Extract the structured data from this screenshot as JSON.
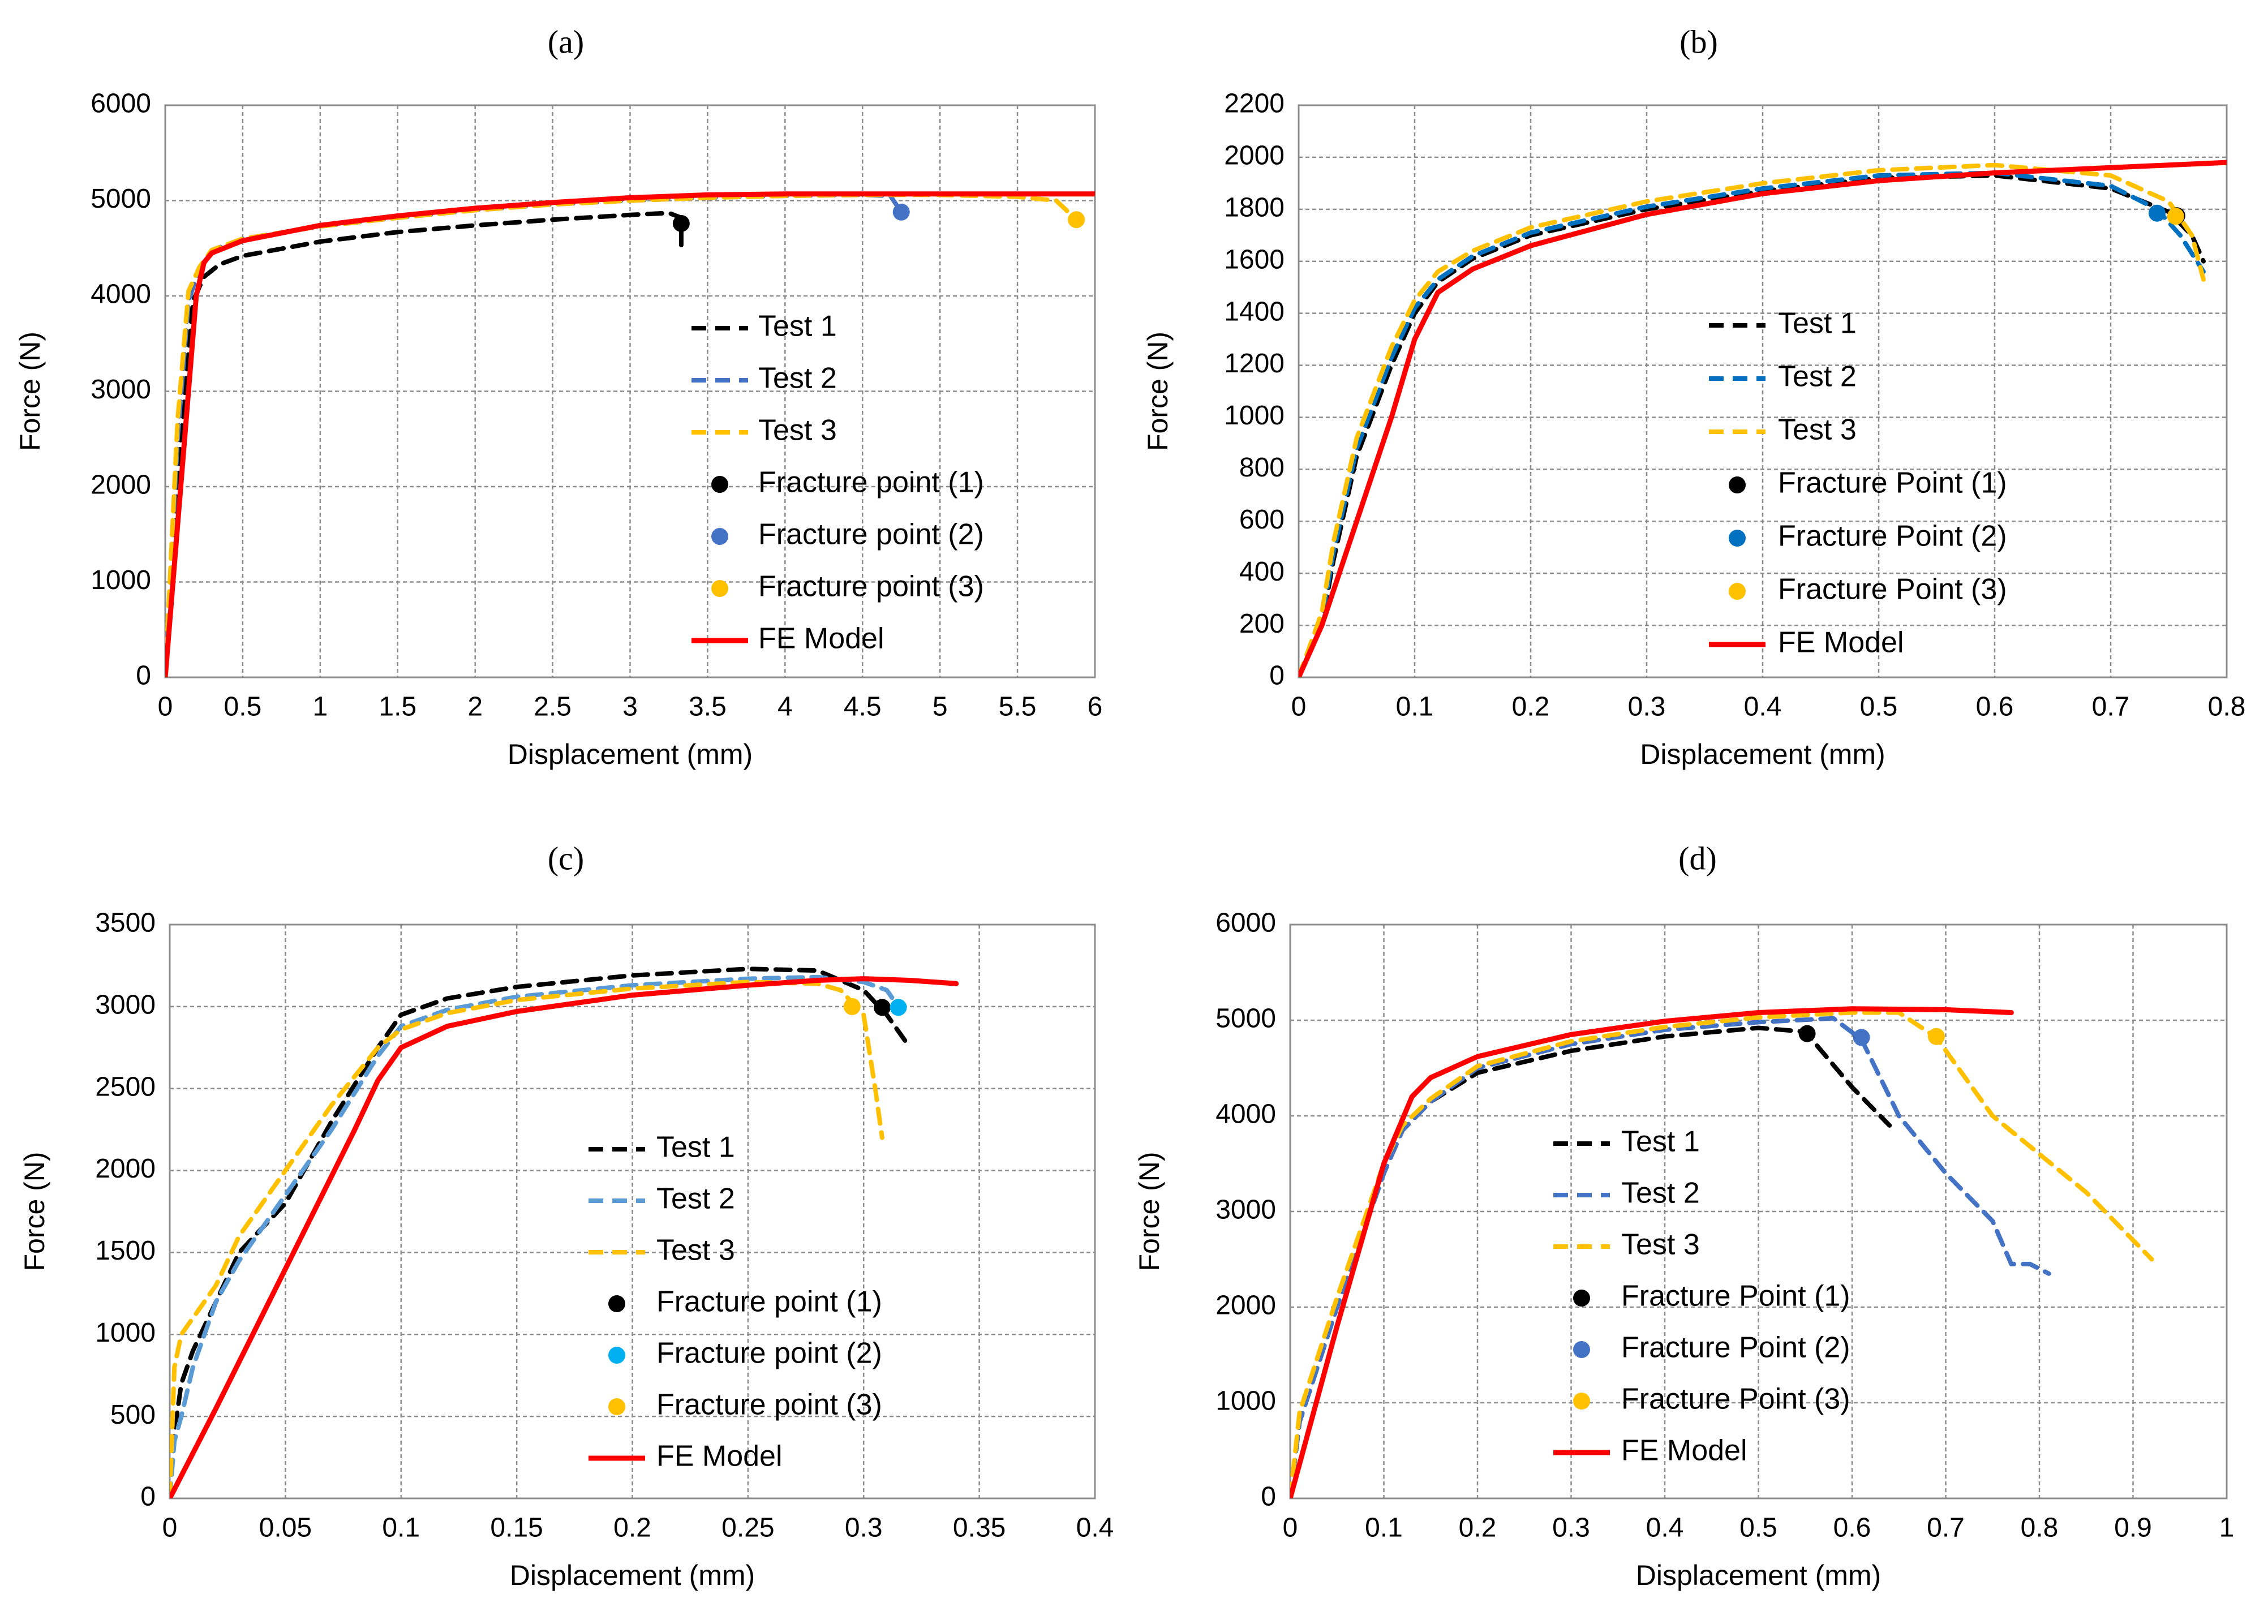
{
  "chart_data": [
    {
      "type": "line",
      "panel": "(a)",
      "xlabel": "Displacement (mm)",
      "ylabel": "Force (N)",
      "xlim": [
        0,
        6
      ],
      "ylim": [
        0,
        6000
      ],
      "xticks": [
        0,
        0.5,
        1,
        1.5,
        2,
        2.5,
        3,
        3.5,
        4,
        4.5,
        5,
        5.5,
        6
      ],
      "xtick_labels": [
        "0",
        "0.5",
        "1",
        "1.5",
        "2",
        "2.5",
        "3",
        "3.5",
        "4",
        "4.5",
        "5",
        "5.5",
        "6"
      ],
      "yticks": [
        0,
        1000,
        2000,
        3000,
        4000,
        5000,
        6000
      ],
      "ytick_labels": [
        "0",
        "1000",
        "2000",
        "3000",
        "4000",
        "5000",
        "6000"
      ],
      "grid": true,
      "legend_position": "center-right",
      "series": [
        {
          "name": "Test 1",
          "style": "dashed",
          "color": "#000000",
          "x": [
            0,
            0.1,
            0.18,
            0.25,
            0.35,
            0.5,
            1,
            1.5,
            2,
            2.5,
            3,
            3.25,
            3.33,
            3.33
          ],
          "y": [
            0,
            2500,
            3950,
            4200,
            4330,
            4420,
            4570,
            4670,
            4740,
            4800,
            4850,
            4870,
            4820,
            4450
          ]
        },
        {
          "name": "Test 2",
          "style": "dashed",
          "color": "#4472C4",
          "x": [
            0,
            0.08,
            0.15,
            0.22,
            0.3,
            0.5,
            1,
            1.5,
            2,
            2.5,
            3,
            3.5,
            4,
            4.5,
            4.68,
            4.75
          ],
          "y": [
            0,
            2500,
            3950,
            4280,
            4480,
            4600,
            4730,
            4820,
            4900,
            4960,
            5000,
            5030,
            5050,
            5060,
            5050,
            4880
          ]
        },
        {
          "name": "Test 3",
          "style": "dashed",
          "color": "#FFC000",
          "x": [
            0,
            0.08,
            0.15,
            0.22,
            0.3,
            0.5,
            1,
            1.5,
            2,
            2.5,
            3,
            3.5,
            4,
            4.5,
            5,
            5.5,
            5.75,
            5.88
          ],
          "y": [
            0,
            2700,
            4050,
            4300,
            4480,
            4600,
            4730,
            4820,
            4900,
            4960,
            5000,
            5030,
            5050,
            5060,
            5060,
            5040,
            5000,
            4800
          ]
        },
        {
          "name": "Fracture point (1)",
          "type": "marker",
          "color": "#000000",
          "x": [
            3.33
          ],
          "y": [
            4760
          ]
        },
        {
          "name": "Fracture point (2)",
          "type": "marker",
          "color": "#4472C4",
          "x": [
            4.75
          ],
          "y": [
            4880
          ]
        },
        {
          "name": "Fracture point (3)",
          "type": "marker",
          "color": "#FFC000",
          "x": [
            5.88
          ],
          "y": [
            4800
          ]
        },
        {
          "name": "FE Model",
          "style": "solid",
          "color": "#FF0000",
          "x": [
            0,
            0.1,
            0.2,
            0.25,
            0.3,
            0.5,
            1,
            1.5,
            2,
            2.5,
            3,
            3.5,
            4,
            4.5,
            5,
            5.5,
            6
          ],
          "y": [
            0,
            2000,
            4000,
            4350,
            4450,
            4580,
            4740,
            4840,
            4920,
            4980,
            5030,
            5060,
            5070,
            5070,
            5070,
            5070,
            5070
          ]
        }
      ]
    },
    {
      "type": "line",
      "panel": "(b)",
      "xlabel": "Displacement (mm)",
      "ylabel": "Force (N)",
      "xlim": [
        0,
        0.8
      ],
      "ylim": [
        0,
        2200
      ],
      "xticks": [
        0,
        0.1,
        0.2,
        0.3,
        0.4,
        0.5,
        0.6,
        0.7,
        0.8
      ],
      "xtick_labels": [
        "0",
        "0.1",
        "0.2",
        "0.3",
        "0.4",
        "0.5",
        "0.6",
        "0.7",
        "0.8"
      ],
      "yticks": [
        0,
        200,
        400,
        600,
        800,
        1000,
        1200,
        1400,
        1600,
        1800,
        2000,
        2200
      ],
      "ytick_labels": [
        "0",
        "200",
        "400",
        "600",
        "800",
        "1000",
        "1200",
        "1400",
        "1600",
        "1800",
        "2000",
        "2200"
      ],
      "grid": true,
      "legend_position": "center",
      "series": [
        {
          "name": "Test 1",
          "style": "dashed",
          "color": "#000000",
          "x": [
            0,
            0.02,
            0.03,
            0.05,
            0.08,
            0.1,
            0.12,
            0.15,
            0.2,
            0.3,
            0.4,
            0.5,
            0.6,
            0.7,
            0.75,
            0.77,
            0.78
          ],
          "y": [
            0,
            200,
            450,
            850,
            1200,
            1400,
            1520,
            1610,
            1700,
            1800,
            1870,
            1920,
            1930,
            1880,
            1790,
            1700,
            1600
          ]
        },
        {
          "name": "Test 2",
          "style": "dashed",
          "color": "#0070C0",
          "x": [
            0,
            0.02,
            0.03,
            0.05,
            0.08,
            0.1,
            0.12,
            0.15,
            0.2,
            0.3,
            0.4,
            0.5,
            0.6,
            0.7,
            0.74,
            0.76,
            0.78
          ],
          "y": [
            0,
            220,
            480,
            880,
            1230,
            1420,
            1530,
            1620,
            1710,
            1810,
            1880,
            1930,
            1940,
            1890,
            1800,
            1700,
            1560
          ]
        },
        {
          "name": "Test 3",
          "style": "dashed",
          "color": "#FFC000",
          "x": [
            0,
            0.02,
            0.03,
            0.05,
            0.08,
            0.1,
            0.12,
            0.15,
            0.2,
            0.3,
            0.4,
            0.5,
            0.6,
            0.7,
            0.75,
            0.77,
            0.78
          ],
          "y": [
            0,
            250,
            520,
            920,
            1270,
            1450,
            1560,
            1640,
            1730,
            1830,
            1900,
            1950,
            1970,
            1930,
            1830,
            1700,
            1530
          ]
        },
        {
          "name": "Fracture Point (1)",
          "type": "marker",
          "color": "#000000",
          "x": [
            0.757
          ],
          "y": [
            1775
          ]
        },
        {
          "name": "Fracture Point (2)",
          "type": "marker",
          "color": "#0070C0",
          "x": [
            0.74
          ],
          "y": [
            1785
          ]
        },
        {
          "name": "Fracture Point (3)",
          "type": "marker",
          "color": "#FFC000",
          "x": [
            0.756
          ],
          "y": [
            1773
          ]
        },
        {
          "name": "FE Model",
          "style": "solid",
          "color": "#FF0000",
          "x": [
            0,
            0.02,
            0.05,
            0.08,
            0.1,
            0.12,
            0.15,
            0.2,
            0.3,
            0.4,
            0.5,
            0.6,
            0.7,
            0.8
          ],
          "y": [
            0,
            200,
            600,
            1000,
            1300,
            1480,
            1570,
            1660,
            1780,
            1860,
            1910,
            1940,
            1960,
            1980
          ]
        }
      ]
    },
    {
      "type": "line",
      "panel": "(c)",
      "xlabel": "Displacement (mm)",
      "ylabel": "Force (N)",
      "xlim": [
        0,
        0.4
      ],
      "ylim": [
        0,
        3500
      ],
      "xticks": [
        0,
        0.05,
        0.1,
        0.15,
        0.2,
        0.25,
        0.3,
        0.35,
        0.4
      ],
      "xtick_labels": [
        "0",
        "0.05",
        "0.1",
        "0.15",
        "0.2",
        "0.25",
        "0.3",
        "0.35",
        "0.4"
      ],
      "yticks": [
        0,
        500,
        1000,
        1500,
        2000,
        2500,
        3000,
        3500
      ],
      "ytick_labels": [
        "0",
        "500",
        "1000",
        "1500",
        "2000",
        "2500",
        "3000",
        "3500"
      ],
      "grid": true,
      "legend_position": "center",
      "series": [
        {
          "name": "Test 1",
          "style": "dashed",
          "color": "#000000",
          "x": [
            0,
            0.002,
            0.005,
            0.01,
            0.02,
            0.03,
            0.05,
            0.07,
            0.09,
            0.1,
            0.12,
            0.15,
            0.2,
            0.25,
            0.28,
            0.3,
            0.31,
            0.32
          ],
          "y": [
            0,
            400,
            700,
            900,
            1200,
            1500,
            1800,
            2300,
            2750,
            2950,
            3050,
            3120,
            3190,
            3230,
            3220,
            3100,
            2950,
            2750
          ]
        },
        {
          "name": "Test 2",
          "style": "dashed",
          "color": "#5B9BD5",
          "x": [
            0,
            0.002,
            0.005,
            0.01,
            0.02,
            0.03,
            0.05,
            0.07,
            0.09,
            0.1,
            0.12,
            0.15,
            0.2,
            0.25,
            0.28,
            0.3,
            0.31,
            0.315
          ],
          "y": [
            0,
            350,
            500,
            800,
            1200,
            1450,
            1850,
            2250,
            2700,
            2880,
            2980,
            3060,
            3130,
            3170,
            3180,
            3150,
            3100,
            3000
          ]
        },
        {
          "name": "Test 3",
          "style": "dashed",
          "color": "#FFC000",
          "x": [
            0,
            0.002,
            0.005,
            0.01,
            0.02,
            0.03,
            0.05,
            0.07,
            0.09,
            0.1,
            0.12,
            0.15,
            0.2,
            0.25,
            0.28,
            0.29,
            0.3,
            0.305,
            0.308
          ],
          "y": [
            0,
            800,
            1000,
            1100,
            1300,
            1600,
            2000,
            2400,
            2750,
            2860,
            2960,
            3040,
            3110,
            3150,
            3140,
            3100,
            2950,
            2500,
            2200
          ]
        },
        {
          "name": "Fracture point (1)",
          "type": "marker",
          "color": "#000000",
          "x": [
            0.308
          ],
          "y": [
            2995
          ]
        },
        {
          "name": "Fracture point (2)",
          "type": "marker",
          "color": "#00B0F0",
          "x": [
            0.315
          ],
          "y": [
            2995
          ]
        },
        {
          "name": "Fracture point (3)",
          "type": "marker",
          "color": "#FFC000",
          "x": [
            0.295
          ],
          "y": [
            3000
          ]
        },
        {
          "name": "FE Model",
          "style": "solid",
          "color": "#FF0000",
          "x": [
            0,
            0.02,
            0.05,
            0.08,
            0.09,
            0.1,
            0.12,
            0.15,
            0.2,
            0.25,
            0.28,
            0.3,
            0.32,
            0.34
          ],
          "y": [
            0,
            550,
            1400,
            2250,
            2550,
            2750,
            2880,
            2970,
            3070,
            3130,
            3160,
            3170,
            3160,
            3140
          ]
        }
      ]
    },
    {
      "type": "line",
      "panel": "(d)",
      "xlabel": "Displacement (mm)",
      "ylabel": "Force (N)",
      "xlim": [
        0,
        1
      ],
      "ylim": [
        0,
        6000
      ],
      "xticks": [
        0,
        0.1,
        0.2,
        0.3,
        0.4,
        0.5,
        0.6,
        0.7,
        0.8,
        0.9,
        1
      ],
      "xtick_labels": [
        "0",
        "0.1",
        "0.2",
        "0.3",
        "0.4",
        "0.5",
        "0.6",
        "0.7",
        "0.8",
        "0.9",
        "1"
      ],
      "yticks": [
        0,
        1000,
        2000,
        3000,
        4000,
        5000,
        6000
      ],
      "ytick_labels": [
        "0",
        "1000",
        "2000",
        "3000",
        "4000",
        "5000",
        "6000"
      ],
      "grid": true,
      "legend_position": "center-left",
      "series": [
        {
          "name": "Test 1",
          "style": "dashed",
          "color": "#000000",
          "x": [
            0,
            0.01,
            0.05,
            0.1,
            0.12,
            0.15,
            0.2,
            0.3,
            0.4,
            0.5,
            0.55,
            0.6,
            0.64
          ],
          "y": [
            0,
            800,
            2000,
            3400,
            3850,
            4150,
            4450,
            4680,
            4830,
            4920,
            4880,
            4300,
            3900
          ]
        },
        {
          "name": "Test 2",
          "style": "dashed",
          "color": "#4472C4",
          "x": [
            0,
            0.01,
            0.05,
            0.1,
            0.12,
            0.15,
            0.2,
            0.3,
            0.4,
            0.5,
            0.58,
            0.61,
            0.65,
            0.7,
            0.75,
            0.77,
            0.79,
            0.81
          ],
          "y": [
            0,
            800,
            2000,
            3400,
            3850,
            4150,
            4500,
            4750,
            4900,
            4980,
            5020,
            4800,
            4000,
            3400,
            2900,
            2450,
            2450,
            2350
          ]
        },
        {
          "name": "Test 3",
          "style": "dashed",
          "color": "#FFC000",
          "x": [
            0,
            0.01,
            0.05,
            0.1,
            0.12,
            0.15,
            0.2,
            0.3,
            0.4,
            0.5,
            0.6,
            0.65,
            0.69,
            0.75,
            0.85,
            0.92
          ],
          "y": [
            0,
            900,
            2100,
            3500,
            3900,
            4180,
            4520,
            4780,
            4930,
            5030,
            5080,
            5080,
            4820,
            4000,
            3200,
            2500
          ]
        },
        {
          "name": "Fracture Point (1)",
          "type": "marker",
          "color": "#000000",
          "x": [
            0.552
          ],
          "y": [
            4860
          ]
        },
        {
          "name": "Fracture Point (2)",
          "type": "marker",
          "color": "#4472C4",
          "x": [
            0.61
          ],
          "y": [
            4820
          ]
        },
        {
          "name": "Fracture Point (3)",
          "type": "marker",
          "color": "#FFC000",
          "x": [
            0.69
          ],
          "y": [
            4830
          ]
        },
        {
          "name": "FE Model",
          "style": "solid",
          "color": "#FF0000",
          "x": [
            0,
            0.05,
            0.1,
            0.13,
            0.15,
            0.2,
            0.3,
            0.4,
            0.5,
            0.6,
            0.7,
            0.77
          ],
          "y": [
            0,
            1800,
            3500,
            4200,
            4400,
            4620,
            4850,
            4990,
            5080,
            5120,
            5110,
            5080
          ]
        }
      ]
    }
  ]
}
